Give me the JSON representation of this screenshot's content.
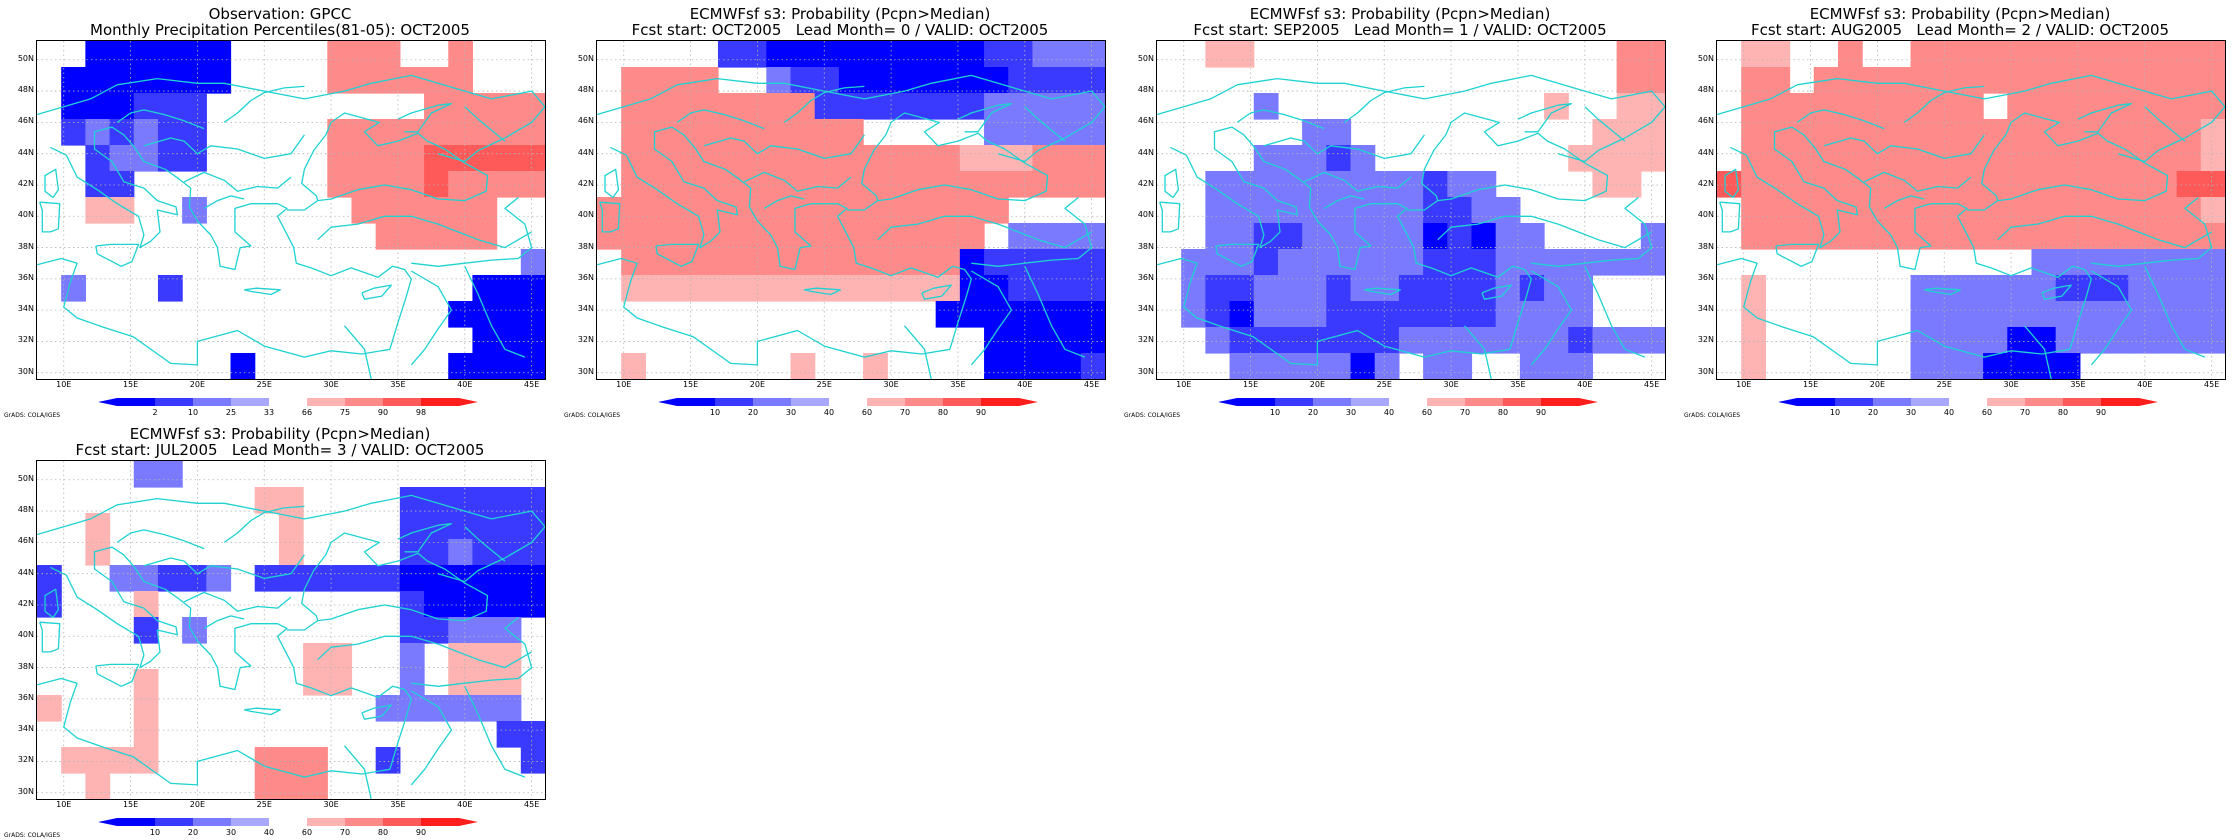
{
  "colors": {
    "blue_shades": [
      "#0000ff",
      "#3a3aff",
      "#7a7aff",
      "#a8a8ff"
    ],
    "red_shades": [
      "#ffb4b4",
      "#ff8a8a",
      "#ff5a5a",
      "#ff1e1e"
    ],
    "coast": "#1ed2d2",
    "grid": "#b4b4b4"
  },
  "axes": {
    "lat_labels": [
      "50N",
      "48N",
      "46N",
      "44N",
      "42N",
      "40N",
      "38N",
      "36N",
      "34N",
      "32N",
      "30N"
    ],
    "lon_labels": [
      "10E",
      "15E",
      "20E",
      "25E",
      "30E",
      "35E",
      "40E",
      "45E"
    ]
  },
  "panels": [
    {
      "title1": "Observation: GPCC",
      "title2": "Monthly Precipitation Percentiles(81-05): OCT2005",
      "legend_labels": [
        "2",
        "10",
        "25",
        "33",
        "66",
        "75",
        "90",
        "98"
      ],
      "credit": "GrADS: COLA/IGES",
      "grid": [
        "00BBBBBB0000RRR00R000",
        "0BBBBBBB0000RRRRRR000",
        "0BBBCCC000000000RRRRR",
        "0CDCDCC00000RRRRRRRRR",
        "00CDDCC00000RRRRSSSSS",
        "00CC00000000RRRRSRRRR",
        "00EE00D000000RRRRRR00",
        "00000000000000RRRRR00",
        "00000000000000000000D",
        "0D000C000000000000BBB",
        "00000000000000000BBBB",
        "000000000000000000BBB",
        "00000000B00000000BBBB"
      ]
    },
    {
      "title1": "ECMWFsf s3: Probability (Pcpn>Median)",
      "title2": "Fcst start: OCT2005   Lead Month= 0 / VALID: OCT2005",
      "legend_labels": [
        "10",
        "20",
        "30",
        "40",
        "60",
        "70",
        "80",
        "90"
      ],
      "credit": "GrADS: COLA/IGES",
      "grid": [
        "00000CCBBBBBBBBBCCDDD",
        "0RRRR00DCCBBBBBBBCCCC",
        "0RRRRRRRRCCCCCCCDDDDD",
        "0RRRRRRRRRR00000DDDDD",
        "0RRRRRRRRRRRRRREEERRR",
        "0RRRRRRRRRRRRRRRRRRRR",
        "RRRRRRRRRRRRRRRRR0000",
        "RRRRRRRRRRRRRRRR0DDDD",
        "0RRRRRRRRRRRRRRBCCCCC",
        "0EEEEEEEEEEEEEEBBCCCC",
        "00000000000000BBBBBBB",
        "0000000000000000BBBBB",
        "0E000000E00E0000BBBBC"
      ]
    },
    {
      "title1": "ECMWFsf s3: Probability (Pcpn>Median)",
      "title2": "Fcst start: SEP2005   Lead Month= 1 / VALID: OCT2005",
      "legend_labels": [
        "10",
        "20",
        "30",
        "40",
        "60",
        "70",
        "80",
        "90"
      ],
      "credit": "GrADS: COLA/IGES",
      "grid": [
        "00EE000000000000000RR",
        "0000000000000000000RR",
        "0000D00000000000E00EE",
        "000000DD0000000000EEE",
        "0000DDDCD00000000EEEE",
        "00DDDDDDDDDCDD0000EE0",
        "00DDDDDDDDDCCDD000000",
        "00DDCCDDDDDBCBDD0000D",
        "0DDDCDDDDDDCCCDDDDDDD",
        "0DCCDDDCDDCCCCDCDD000",
        "0DCBDDDCCCCCCCDDDD000",
        "00DCCCCCCCDDDDDDDCDDD",
        "000DDDDDBD0DD00DDD000"
      ]
    },
    {
      "title1": "ECMWFsf s3: Probability (Pcpn>Median)",
      "title2": "Fcst start: AUG2005   Lead Month= 2 / VALID: OCT2005",
      "legend_labels": [
        "10",
        "20",
        "30",
        "40",
        "60",
        "70",
        "80",
        "90"
      ],
      "credit": "GrADS: COLA/IGES",
      "grid": [
        "0EE00R00RRRRRRRRRRRRR",
        "0RR0RRRRRRRRRRRRRRRRR",
        "0RRRRRRRRRR0RRRRRRRRR",
        "0RRRRRRRRRRRRRRRRRRRE",
        "0RRRRRRRRRRRRRRRRRRRE",
        "SRRRRRRRRRRRRRRRRRRSS",
        "0RRRRRRRRRRRRRRRRRRRE",
        "0RRRRRRRRRRRRRRRRRRRR",
        "0000000000000DDDDDDDD",
        "0E000000DDDDDDCCCDDDD",
        "0E000000DDDDDDDDDDDDD",
        "0E000000DDDDBBDDDDDDD",
        "0E000000DDDBBBB000000"
      ]
    },
    {
      "title1": "ECMWFsf s3: Probability (Pcpn>Median)",
      "title2": "Fcst start: JUL2005   Lead Month= 3 / VALID: OCT2005",
      "legend_labels": [
        "10",
        "20",
        "30",
        "40",
        "60",
        "70",
        "80",
        "90"
      ],
      "credit": "GrADS: COLA/IGES",
      "grid": [
        "0000DD000000000000000",
        "000000000EE0000CCCCCC",
        "00E0000000E0000CCCCCC",
        "00E0000000E0000CCDCCC",
        "C00DDCCD0CCCCCCBBBBBB",
        "C000E0000000000CBBBBB",
        "0000C0D00000000CCDDD0",
        "00000000000EE00D0EEE0",
        "0000E000000EE00D0EEE0",
        "E000E000000000DDDDDD0",
        "0000E00000000000000CC",
        "0EEEE0000RRR00C00000C",
        "00E000000RRR000000000"
      ]
    }
  ]
}
